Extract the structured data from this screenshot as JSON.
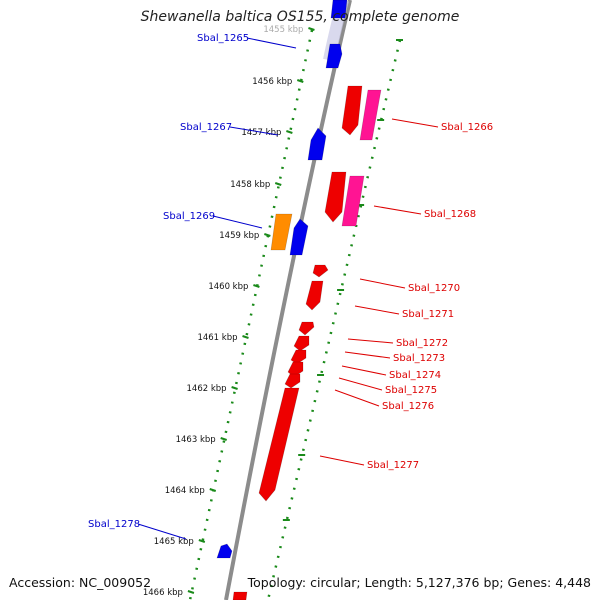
{
  "title": "Shewanella baltica OS155, complete genome",
  "accession_text": "Accession: NC_009052",
  "topology_text": "Topology: circular; Length: 5,127,376 bp; Genes: 4,448",
  "colors": {
    "backbone": "#909090",
    "forward_gene": "#0000ee",
    "reverse_gene": "#ee0000",
    "reverse_gene_alt": "#ff1493",
    "forward_gene_alt": "#ff8c00",
    "tick": "#1a8a1a",
    "label_forward": "#0000cc",
    "label_reverse": "#dd0000"
  },
  "scale_labels": [
    "1455 kbp",
    "1456 kbp",
    "1457 kbp",
    "1458 kbp",
    "1459 kbp",
    "1460 kbp",
    "1461 kbp",
    "1462 kbp",
    "1463 kbp",
    "1464 kbp",
    "1465 kbp",
    "1466 kbp"
  ],
  "forward_labels": [
    "Sbal_1265",
    "Sbal_1267",
    "Sbal_1269",
    "Sbal_1278"
  ],
  "reverse_labels": [
    "Sbal_1266",
    "Sbal_1268",
    "Sbal_1270",
    "Sbal_1271",
    "Sbal_1272",
    "Sbal_1273",
    "Sbal_1274",
    "Sbal_1275",
    "Sbal_1276",
    "Sbal_1277"
  ]
}
